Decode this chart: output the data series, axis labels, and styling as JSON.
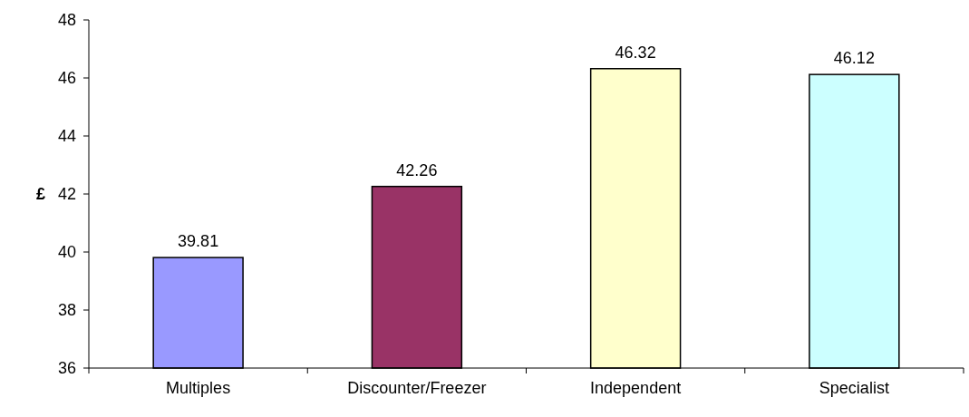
{
  "chart_data": {
    "type": "bar",
    "ylabel": "£",
    "categories": [
      "Multiples",
      "Discounter/Freezer",
      "Independent",
      "Specialist"
    ],
    "values": [
      39.81,
      42.26,
      46.32,
      46.12
    ],
    "colors": [
      "#9999ff",
      "#993366",
      "#ffffcc",
      "#ccffff"
    ],
    "ylim": [
      36,
      48
    ],
    "yticks": [
      36,
      38,
      40,
      42,
      44,
      46,
      48
    ],
    "data_labels": true
  }
}
